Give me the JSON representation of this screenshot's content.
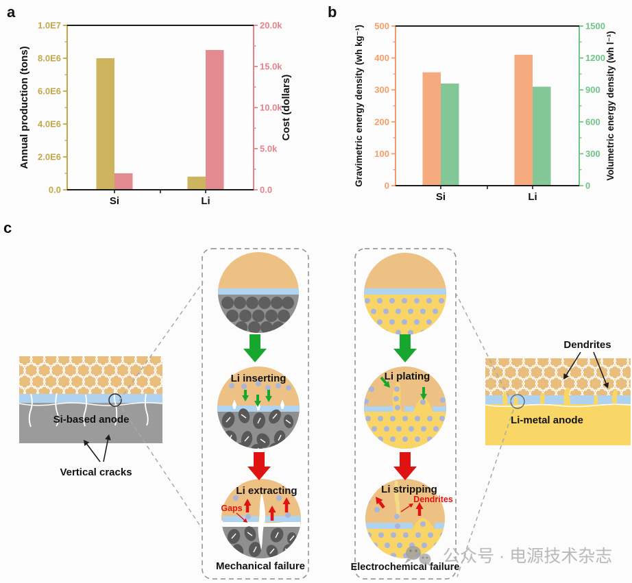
{
  "panel_a": {
    "label": "a"
  },
  "panel_b": {
    "label": "b"
  },
  "panel_c": {
    "label": "c",
    "si_diagram": {
      "anode_label": "Si-based anode",
      "cracks_label": "Vertical cracks"
    },
    "li_diagram": {
      "anode_label": "Li-metal anode",
      "dendrites_label": "Dendrites"
    },
    "mechanical": {
      "step1": "Li inserting",
      "step2": "Li extracting",
      "gaps_label": "Gaps",
      "caption": "Mechanical failure"
    },
    "electrochemical": {
      "step1": "Li plating",
      "step2": "Li stripping",
      "dendrites_label": "Dendrites",
      "caption": "Electrochemical failure"
    }
  },
  "watermark": {
    "text": "公众号 · 电源技术杂志"
  },
  "chart_data": [
    {
      "type": "bar",
      "panel": "a",
      "categories": [
        "Si",
        "Li"
      ],
      "series": [
        {
          "name": "Annual production",
          "axis": "left",
          "color": "#cdb45f",
          "values": [
            8000000,
            800000
          ]
        },
        {
          "name": "Cost",
          "axis": "right",
          "color": "#e28b90",
          "values": [
            2000,
            17000
          ]
        }
      ],
      "left_axis": {
        "label": "Annual production (tons)",
        "color": "#c2a748",
        "min": 0,
        "max": 10000000,
        "tick_labels": [
          "0.0",
          "2.0E6",
          "4.0E6",
          "6.0E6",
          "8.0E6",
          "1.0E7"
        ]
      },
      "right_axis": {
        "label": "Cost (dollars)",
        "color": "#e4838a",
        "min": 0,
        "max": 20000,
        "tick_labels": [
          "0.0",
          "5.0k",
          "10.0k",
          "15.0k",
          "20.0k"
        ]
      },
      "grid": false,
      "legend": false
    },
    {
      "type": "bar",
      "panel": "b",
      "categories": [
        "Si",
        "Li"
      ],
      "series": [
        {
          "name": "Gravimetric energy density",
          "axis": "left",
          "color": "#f5ab7e",
          "values": [
            355,
            410
          ]
        },
        {
          "name": "Volumetric energy density",
          "axis": "right",
          "color": "#82c795",
          "values": [
            960,
            930
          ]
        }
      ],
      "left_axis": {
        "label": "Gravimetric energy density (wh kg⁻¹)",
        "color": "#f59d68",
        "min": 0,
        "max": 500,
        "tick_labels": [
          "0",
          "100",
          "200",
          "300",
          "400",
          "500"
        ]
      },
      "right_axis": {
        "label": "Volumetric energy density (wh l⁻¹)",
        "color": "#6fc488",
        "min": 0,
        "max": 1500,
        "tick_labels": [
          "0",
          "300",
          "600",
          "900",
          "1200",
          "1500"
        ]
      },
      "grid": false,
      "legend": false
    }
  ]
}
